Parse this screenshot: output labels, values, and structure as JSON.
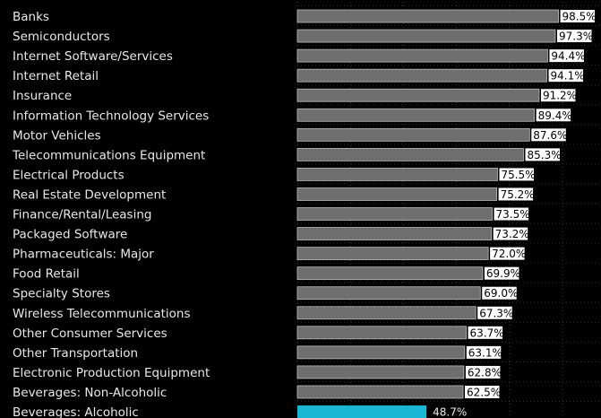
{
  "chart_data": {
    "type": "bar",
    "orientation": "horizontal",
    "categories": [
      "Banks",
      "Semiconductors",
      "Internet Software/Services",
      "Internet Retail",
      "Insurance",
      "Information Technology Services",
      "Motor Vehicles",
      "Telecommunications Equipment",
      "Electrical Products",
      "Real Estate Development",
      "Finance/Rental/Leasing",
      "Packaged Software",
      "Pharmaceuticals: Major",
      "Food Retail",
      "Specialty Stores",
      "Wireless Telecommunications",
      "Other Consumer Services",
      "Other Transportation",
      "Electronic Production Equipment",
      "Beverages: Non-Alcoholic",
      "Beverages: Alcoholic"
    ],
    "values": [
      98.5,
      97.3,
      94.4,
      94.1,
      91.2,
      89.4,
      87.6,
      85.3,
      75.5,
      75.2,
      73.5,
      73.2,
      72.0,
      69.9,
      69.0,
      67.3,
      63.7,
      63.1,
      62.8,
      62.5,
      48.7
    ],
    "value_labels": [
      "98.5%",
      "97.3%",
      "94.4%",
      "94.1%",
      "91.2%",
      "89.4%",
      "87.6%",
      "85.3%",
      "75.5%",
      "75.2%",
      "73.5%",
      "73.2%",
      "72.0%",
      "69.9%",
      "69.0%",
      "67.3%",
      "63.7%",
      "63.1%",
      "62.8%",
      "62.5%",
      "48.7%"
    ],
    "highlight_index": 20,
    "xlim": [
      0,
      100
    ],
    "grid": true,
    "bar_color": "#6e6e6e",
    "highlight_color": "#1ab6d6",
    "background": "#000000"
  }
}
